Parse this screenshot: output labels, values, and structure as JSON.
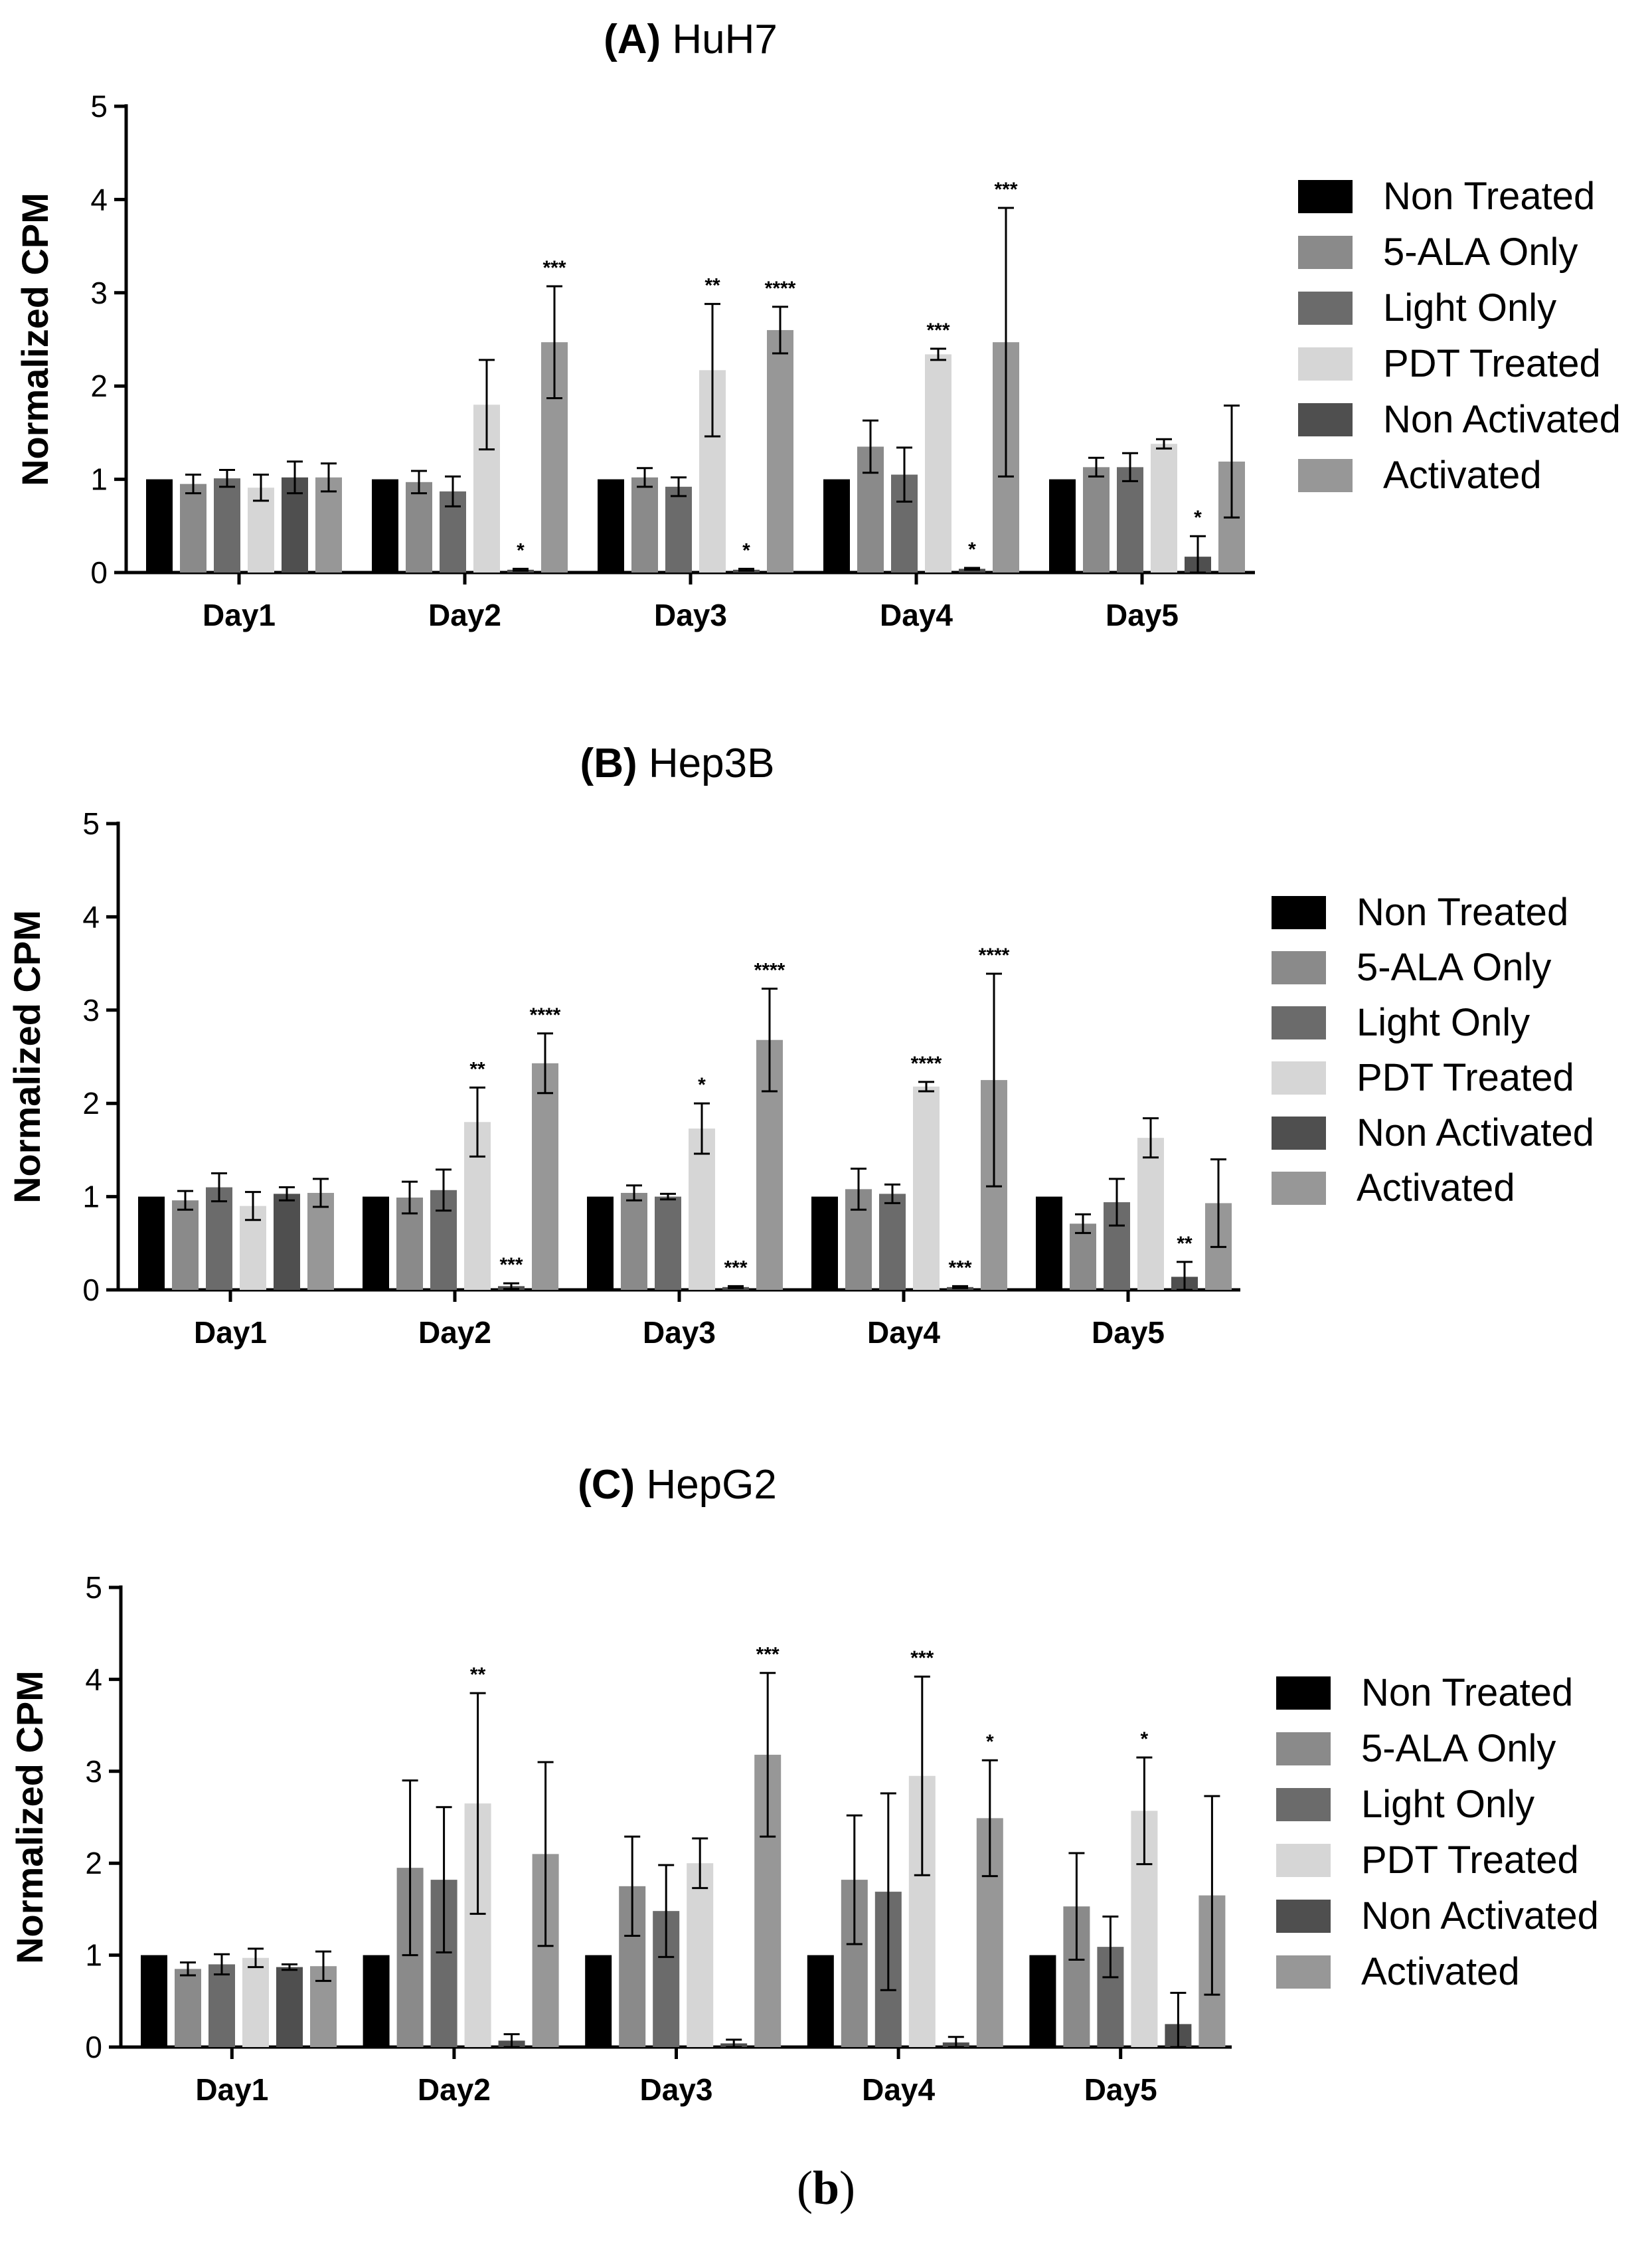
{
  "caption": {
    "open": "(",
    "letter": "b",
    "close": ")"
  },
  "colors": {
    "Non Treated": "#000000",
    "5-ALA Only": "#8a8a8a",
    "Light Only": "#6b6b6b",
    "PDT Treated": "#d6d6d6",
    "Non Activated": "#4f4f4f",
    "Activated": "#979797"
  },
  "chart_data": [
    {
      "type": "bar",
      "title_letter": "(A)",
      "title_name": "HuH7",
      "ylabel": "Normalized CPM",
      "xlabel": "",
      "ylim": [
        0,
        5
      ],
      "yticks": [
        "0",
        "1",
        "2",
        "3",
        "4",
        "5"
      ],
      "categories": [
        "Day1",
        "Day2",
        "Day3",
        "Day4",
        "Day5"
      ],
      "legend_position": "right",
      "series": [
        {
          "name": "Non Treated",
          "values": [
            1,
            1,
            1,
            1,
            1
          ],
          "errors": [
            0,
            0,
            0,
            0,
            0
          ],
          "sig": [
            "",
            "",
            "",
            "",
            ""
          ]
        },
        {
          "name": "5-ALA Only",
          "values": [
            0.95,
            0.97,
            1.02,
            1.35,
            1.13
          ],
          "errors": [
            0.1,
            0.12,
            0.1,
            0.28,
            0.1
          ],
          "sig": [
            "",
            "",
            "",
            "",
            ""
          ]
        },
        {
          "name": "Light Only",
          "values": [
            1.01,
            0.87,
            0.92,
            1.05,
            1.13
          ],
          "errors": [
            0.09,
            0.16,
            0.1,
            0.29,
            0.15
          ],
          "sig": [
            "",
            "",
            "",
            "",
            ""
          ]
        },
        {
          "name": "PDT Treated",
          "values": [
            0.91,
            1.8,
            2.17,
            2.34,
            1.38
          ],
          "errors": [
            0.14,
            0.48,
            0.71,
            0.06,
            0.05
          ],
          "sig": [
            "",
            "",
            "**",
            "***",
            ""
          ]
        },
        {
          "name": "Non Activated",
          "values": [
            1.02,
            0.03,
            0.03,
            0.04,
            0.17
          ],
          "errors": [
            0.17,
            0.01,
            0.01,
            0.01,
            0.22
          ],
          "sig": [
            "",
            "*",
            "*",
            "*",
            "*"
          ]
        },
        {
          "name": "Activated",
          "values": [
            1.02,
            2.47,
            2.6,
            2.47,
            1.19
          ],
          "errors": [
            0.15,
            0.6,
            0.25,
            1.44,
            0.6
          ],
          "sig": [
            "",
            "***",
            "****",
            "***",
            ""
          ]
        }
      ]
    },
    {
      "type": "bar",
      "title_letter": "(B)",
      "title_name": "Hep3B",
      "ylabel": "Normalized CPM",
      "xlabel": "",
      "ylim": [
        0,
        5
      ],
      "yticks": [
        "0",
        "1",
        "2",
        "3",
        "4",
        "5"
      ],
      "categories": [
        "Day1",
        "Day2",
        "Day3",
        "Day4",
        "Day5"
      ],
      "legend_position": "right",
      "series": [
        {
          "name": "Non Treated",
          "values": [
            1,
            1,
            1,
            1,
            1
          ],
          "errors": [
            0,
            0,
            0,
            0,
            0
          ],
          "sig": [
            "",
            "",
            "",
            "",
            ""
          ]
        },
        {
          "name": "5-ALA Only",
          "values": [
            0.96,
            0.99,
            1.04,
            1.08,
            0.71
          ],
          "errors": [
            0.1,
            0.17,
            0.08,
            0.22,
            0.1
          ],
          "sig": [
            "",
            "",
            "",
            "",
            ""
          ]
        },
        {
          "name": "Light Only",
          "values": [
            1.1,
            1.07,
            1.0,
            1.03,
            0.94
          ],
          "errors": [
            0.15,
            0.22,
            0.03,
            0.1,
            0.25
          ],
          "sig": [
            "",
            "",
            "",
            "",
            ""
          ]
        },
        {
          "name": "PDT Treated",
          "values": [
            0.9,
            1.8,
            1.73,
            2.18,
            1.63
          ],
          "errors": [
            0.15,
            0.37,
            0.27,
            0.05,
            0.21
          ],
          "sig": [
            "",
            "**",
            "*",
            "****",
            ""
          ]
        },
        {
          "name": "Non Activated",
          "values": [
            1.03,
            0.04,
            0.03,
            0.03,
            0.14
          ],
          "errors": [
            0.07,
            0.03,
            0.01,
            0.01,
            0.16
          ],
          "sig": [
            "",
            "***",
            "***",
            "***",
            "**"
          ]
        },
        {
          "name": "Activated",
          "values": [
            1.04,
            2.43,
            2.68,
            2.25,
            0.93
          ],
          "errors": [
            0.15,
            0.32,
            0.55,
            1.14,
            0.47
          ],
          "sig": [
            "",
            "****",
            "****",
            "****",
            ""
          ]
        }
      ]
    },
    {
      "type": "bar",
      "title_letter": "(C)",
      "title_name": "HepG2",
      "ylabel": "Normalized CPM",
      "xlabel": "",
      "ylim": [
        0,
        5
      ],
      "yticks": [
        "0",
        "1",
        "2",
        "3",
        "4",
        "5"
      ],
      "categories": [
        "Day1",
        "Day2",
        "Day3",
        "Day4",
        "Day5"
      ],
      "legend_position": "right",
      "series": [
        {
          "name": "Non Treated",
          "values": [
            1,
            1,
            1,
            1,
            1
          ],
          "errors": [
            0,
            0,
            0,
            0,
            0
          ],
          "sig": [
            "",
            "",
            "",
            "",
            ""
          ]
        },
        {
          "name": "5-ALA Only",
          "values": [
            0.85,
            1.95,
            1.75,
            1.82,
            1.53
          ],
          "errors": [
            0.07,
            0.95,
            0.54,
            0.7,
            0.58
          ],
          "sig": [
            "",
            "",
            "",
            "",
            ""
          ]
        },
        {
          "name": "Light Only",
          "values": [
            0.9,
            1.82,
            1.48,
            1.69,
            1.09
          ],
          "errors": [
            0.11,
            0.79,
            0.5,
            1.07,
            0.33
          ],
          "sig": [
            "",
            "",
            "",
            "",
            ""
          ]
        },
        {
          "name": "PDT Treated",
          "values": [
            0.97,
            2.65,
            2.0,
            2.95,
            2.57
          ],
          "errors": [
            0.1,
            1.2,
            0.27,
            1.08,
            0.58
          ],
          "sig": [
            "",
            "**",
            "",
            "***",
            "*"
          ]
        },
        {
          "name": "Non Activated",
          "values": [
            0.87,
            0.07,
            0.04,
            0.05,
            0.25
          ],
          "errors": [
            0.03,
            0.07,
            0.04,
            0.06,
            0.34
          ],
          "sig": [
            "",
            "",
            "",
            "",
            ""
          ]
        },
        {
          "name": "Activated",
          "values": [
            0.88,
            2.1,
            3.18,
            2.49,
            1.65
          ],
          "errors": [
            0.16,
            1.0,
            0.89,
            0.63,
            1.08
          ],
          "sig": [
            "",
            "",
            "***",
            "*",
            ""
          ]
        }
      ]
    }
  ]
}
